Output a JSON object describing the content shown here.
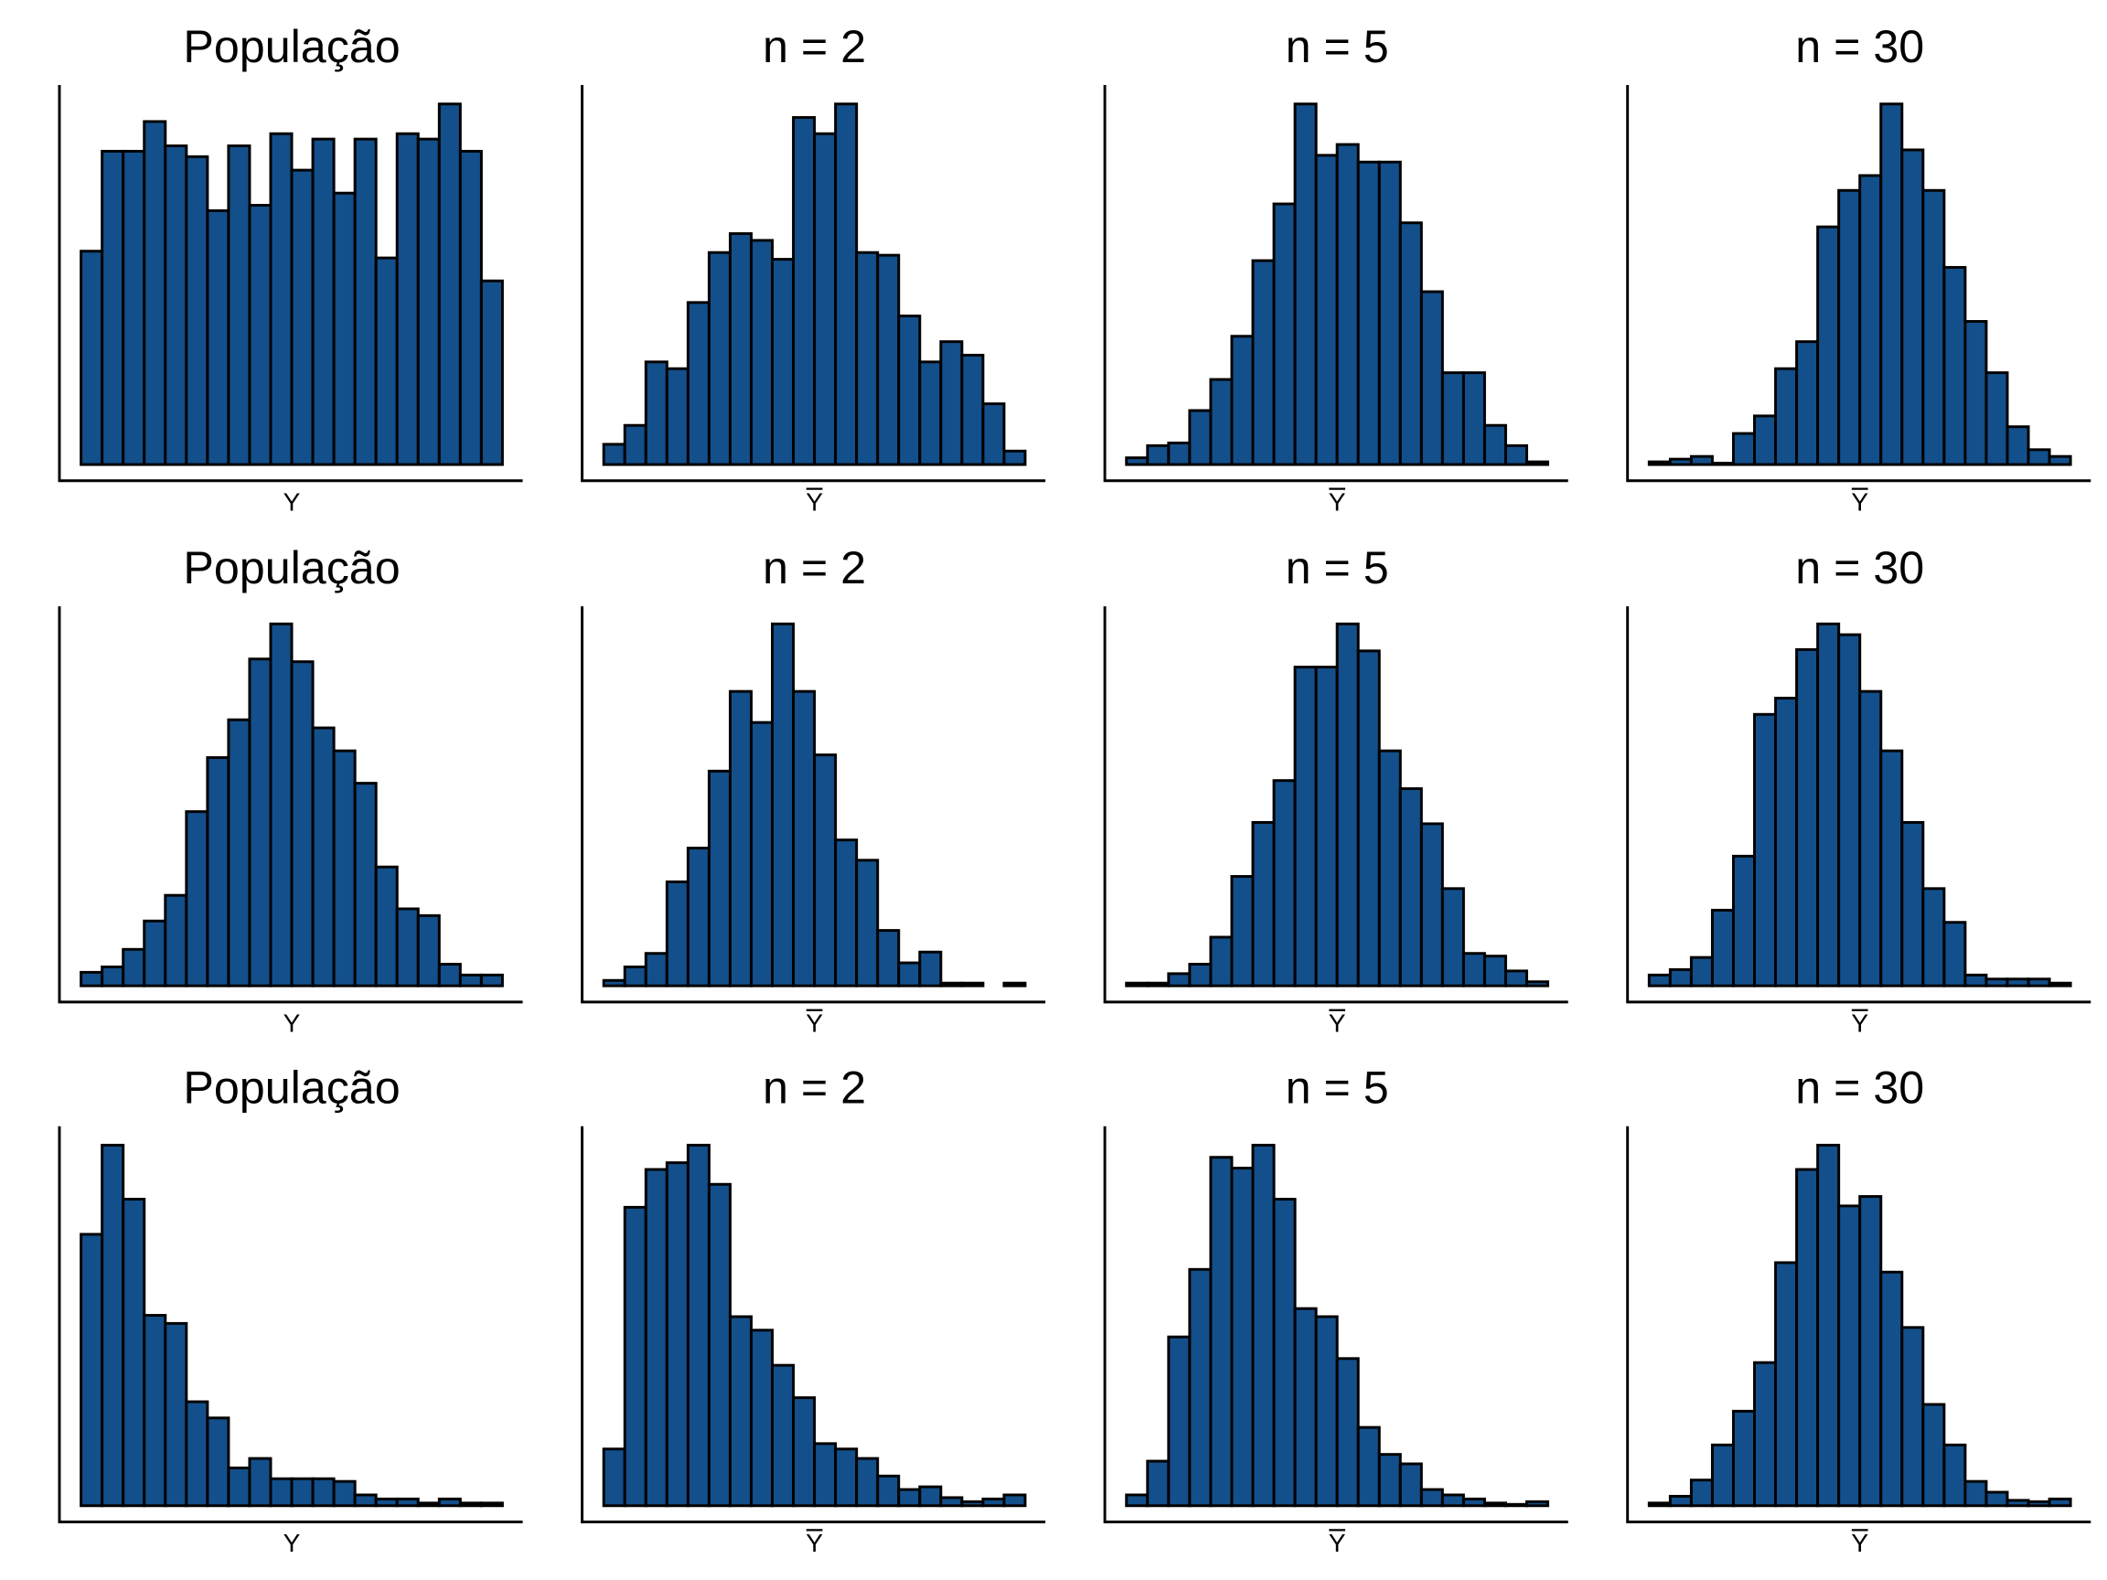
{
  "chart_data": {
    "type": "bar",
    "layout": "3x4 grid of histograms",
    "bar_color": "#134F8A",
    "note": "values are relative bar counts (arbitrary units, max bar per panel ≈ 267)",
    "panels": [
      {
        "title": "População",
        "xlabel": "Y",
        "bar_label": false,
        "values": [
          158,
          232,
          232,
          254,
          236,
          228,
          188,
          236,
          192,
          245,
          218,
          241,
          201,
          241,
          153,
          245,
          241,
          267,
          232,
          136
        ]
      },
      {
        "title": "n = 2",
        "xlabel": "Y",
        "bar_label": true,
        "values": [
          15,
          29,
          76,
          71,
          120,
          157,
          171,
          166,
          152,
          257,
          245,
          267,
          157,
          155,
          110,
          76,
          91,
          81,
          45,
          10
        ]
      },
      {
        "title": "n = 5",
        "xlabel": "Y",
        "bar_label": true,
        "values": [
          5,
          14,
          16,
          40,
          63,
          95,
          151,
          193,
          267,
          229,
          237,
          224,
          224,
          179,
          128,
          68,
          68,
          29,
          14,
          2
        ]
      },
      {
        "title": "n = 30",
        "xlabel": "Y",
        "bar_label": true,
        "values": [
          2,
          4,
          6,
          1,
          23,
          36,
          71,
          91,
          176,
          203,
          214,
          267,
          233,
          203,
          146,
          106,
          68,
          28,
          11,
          6
        ]
      },
      {
        "title": "População",
        "xlabel": "Y",
        "bar_label": false,
        "values": [
          10,
          14,
          27,
          48,
          67,
          129,
          169,
          197,
          242,
          268,
          240,
          191,
          174,
          150,
          88,
          57,
          52,
          16,
          8,
          8
        ]
      },
      {
        "title": "n = 2",
        "xlabel": "Y",
        "bar_label": true,
        "values": [
          4,
          14,
          24,
          77,
          102,
          159,
          218,
          195,
          268,
          218,
          171,
          108,
          93,
          41,
          17,
          25,
          2,
          2,
          0,
          2
        ]
      },
      {
        "title": "n = 5",
        "xlabel": "Y",
        "bar_label": true,
        "values": [
          2,
          2,
          9,
          16,
          36,
          81,
          121,
          152,
          236,
          236,
          268,
          248,
          174,
          146,
          120,
          72,
          24,
          22,
          11,
          3
        ]
      },
      {
        "title": "n = 30",
        "xlabel": "Y",
        "bar_label": true,
        "values": [
          8,
          12,
          21,
          56,
          96,
          201,
          213,
          249,
          268,
          260,
          218,
          174,
          121,
          72,
          47,
          8,
          5,
          5,
          5,
          2
        ]
      },
      {
        "title": "População",
        "xlabel": "Y",
        "bar_label": false,
        "values": [
          201,
          267,
          227,
          141,
          135,
          77,
          65,
          28,
          35,
          20,
          20,
          20,
          18,
          8,
          5,
          5,
          2,
          5,
          2,
          2
        ]
      },
      {
        "title": "n = 2",
        "xlabel": "Y",
        "bar_label": true,
        "values": [
          42,
          221,
          249,
          254,
          267,
          238,
          140,
          130,
          104,
          80,
          46,
          42,
          35,
          22,
          12,
          14,
          6,
          3,
          5,
          8
        ]
      },
      {
        "title": "n = 5",
        "xlabel": "Y",
        "bar_label": true,
        "values": [
          8,
          33,
          125,
          175,
          258,
          250,
          267,
          227,
          146,
          140,
          109,
          58,
          38,
          31,
          12,
          8,
          5,
          2,
          1,
          3
        ]
      },
      {
        "title": "n = 30",
        "xlabel": "Y",
        "bar_label": true,
        "values": [
          2,
          7,
          19,
          45,
          70,
          106,
          180,
          249,
          267,
          222,
          229,
          173,
          132,
          75,
          45,
          18,
          10,
          4,
          3,
          5
        ]
      }
    ]
  }
}
